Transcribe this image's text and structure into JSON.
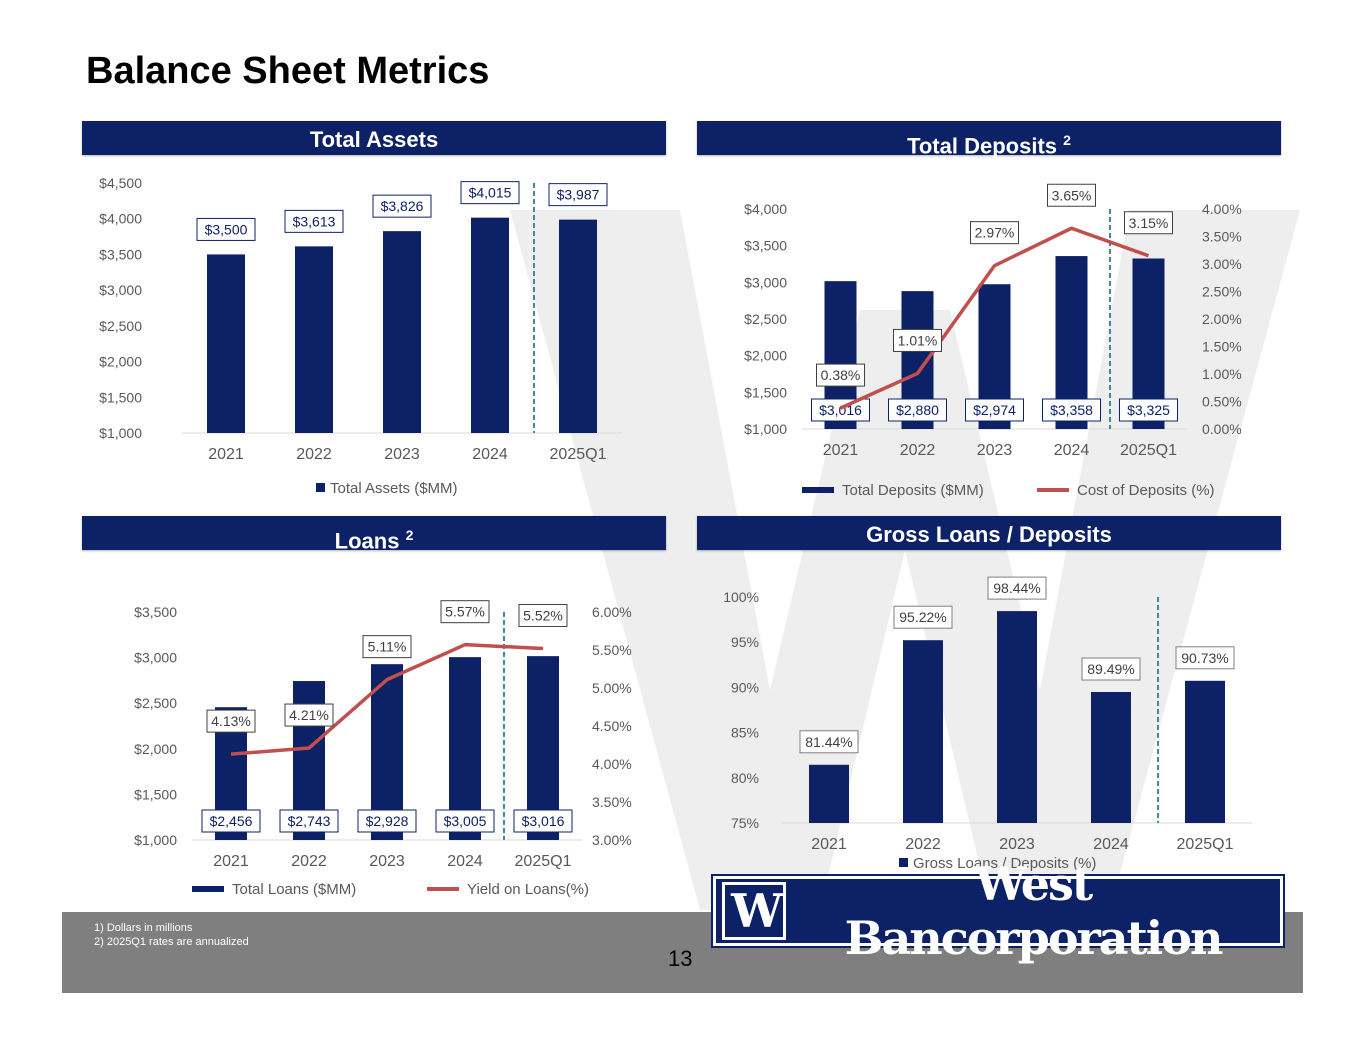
{
  "page": {
    "title": "Balance Sheet Metrics",
    "page_number": "13",
    "footnotes": [
      "1) Dollars in millions",
      "2)  2025Q1 rates are annualized"
    ],
    "logo_text": "West Bancorporation",
    "logo_mark": "W",
    "colors": {
      "navy": "#0d2167",
      "line_red": "#c0504d",
      "divider_teal": "#3a8aa0",
      "footer_gray": "#7f7f7f"
    }
  },
  "headers": {
    "total_assets": {
      "text": "Total Assets",
      "sup": ""
    },
    "total_deposits": {
      "text": "Total Deposits",
      "sup": "2"
    },
    "loans": {
      "text": "Loans",
      "sup": "2"
    },
    "gross_loans_deposits": {
      "text": "Gross Loans / Deposits",
      "sup": ""
    }
  },
  "chart_data": [
    {
      "id": "total_assets",
      "type": "bar",
      "categories": [
        "2021",
        "2022",
        "2023",
        "2024",
        "2025Q1"
      ],
      "values": [
        3500,
        3613,
        3826,
        4015,
        3987
      ],
      "value_labels": [
        "$3,500",
        "$3,613",
        "$3,826",
        "$4,015",
        "$3,987"
      ],
      "y_ticks": [
        "$1,000",
        "$1,500",
        "$2,000",
        "$2,500",
        "$3,000",
        "$3,500",
        "$4,000",
        "$4,500"
      ],
      "ylim": [
        1000,
        4500
      ],
      "legend": [
        "Total Assets ($MM)"
      ],
      "divider_after_index": 3
    },
    {
      "id": "total_deposits",
      "type": "bar+line",
      "categories": [
        "2021",
        "2022",
        "2023",
        "2024",
        "2025Q1"
      ],
      "values": [
        3016,
        2880,
        2974,
        3358,
        3325
      ],
      "value_labels": [
        "$3,016",
        "$2,880",
        "$2,974",
        "$3,358",
        "$3,325"
      ],
      "y_ticks": [
        "$1,000",
        "$1,500",
        "$2,000",
        "$2,500",
        "$3,000",
        "$3,500",
        "$4,000"
      ],
      "ylim": [
        1000,
        4000
      ],
      "line_values": [
        0.38,
        1.01,
        2.97,
        3.65,
        3.15
      ],
      "line_labels": [
        "0.38%",
        "1.01%",
        "2.97%",
        "3.65%",
        "3.15%"
      ],
      "y2_ticks": [
        "0.00%",
        "0.50%",
        "1.00%",
        "1.50%",
        "2.00%",
        "2.50%",
        "3.00%",
        "3.50%",
        "4.00%"
      ],
      "y2lim": [
        0,
        4
      ],
      "legend": [
        "Total Deposits ($MM)",
        "Cost of Deposits (%)"
      ],
      "divider_after_index": 3
    },
    {
      "id": "loans",
      "type": "bar+line",
      "categories": [
        "2021",
        "2022",
        "2023",
        "2024",
        "2025Q1"
      ],
      "values": [
        2456,
        2743,
        2928,
        3005,
        3016
      ],
      "value_labels": [
        "$2,456",
        "$2,743",
        "$2,928",
        "$3,005",
        "$3,016"
      ],
      "y_ticks": [
        "$1,000",
        "$1,500",
        "$2,000",
        "$2,500",
        "$3,000",
        "$3,500"
      ],
      "ylim": [
        1000,
        3500
      ],
      "line_values": [
        4.13,
        4.21,
        5.11,
        5.57,
        5.52
      ],
      "line_labels": [
        "4.13%",
        "4.21%",
        "5.11%",
        "5.57%",
        "5.52%"
      ],
      "y2_ticks": [
        "3.00%",
        "3.50%",
        "4.00%",
        "4.50%",
        "5.00%",
        "5.50%",
        "6.00%"
      ],
      "y2lim": [
        3,
        6
      ],
      "legend": [
        "Total Loans ($MM)",
        "Yield on Loans(%)"
      ],
      "divider_after_index": 3
    },
    {
      "id": "gross_loans_deposits",
      "type": "bar",
      "categories": [
        "2021",
        "2022",
        "2023",
        "2024",
        "2025Q1"
      ],
      "values": [
        81.44,
        95.22,
        98.44,
        89.49,
        90.73
      ],
      "value_labels": [
        "81.44%",
        "95.22%",
        "98.44%",
        "89.49%",
        "90.73%"
      ],
      "y_ticks": [
        "75%",
        "80%",
        "85%",
        "90%",
        "95%",
        "100%"
      ],
      "ylim": [
        75,
        100
      ],
      "legend": [
        "Gross Loans / Deposits (%)"
      ],
      "divider_after_index": 3
    }
  ]
}
